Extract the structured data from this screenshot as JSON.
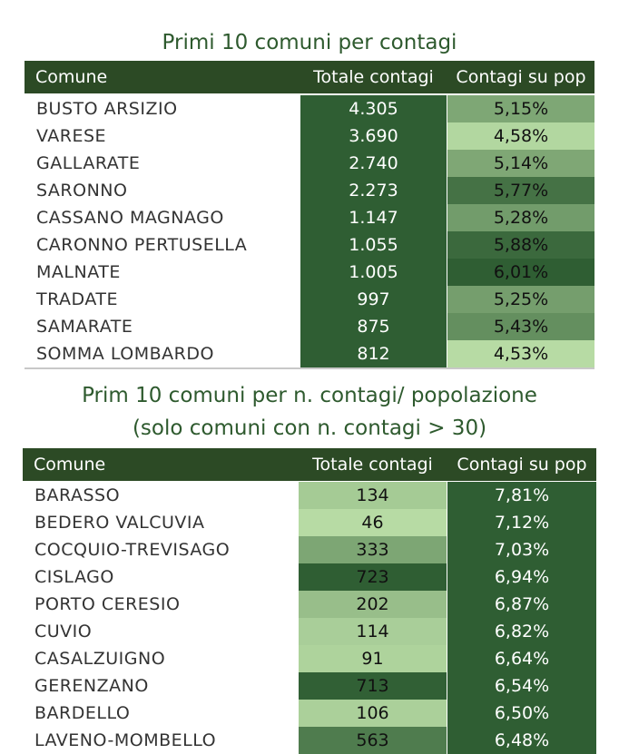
{
  "colors": {
    "header_bg": "#2c4a25",
    "title_text": "#2e5a2e",
    "scale_light": "#b7dba4",
    "scale_dark": "#2f5e33"
  },
  "chart_data": [
    {
      "type": "table",
      "title": "Primi 10 comuni per contagi",
      "columns": [
        "Comune",
        "Totale contagi",
        "Contagi su pop"
      ],
      "rows": [
        [
          "BUSTO ARSIZIO",
          "4.305",
          "5,15%"
        ],
        [
          "VARESE",
          "3.690",
          "4,58%"
        ],
        [
          "GALLARATE",
          "2.740",
          "5,14%"
        ],
        [
          "SARONNO",
          "2.273",
          "5,77%"
        ],
        [
          "CASSANO MAGNAGO",
          "1.147",
          "5,28%"
        ],
        [
          "CARONNO PERTUSELLA",
          "1.055",
          "5,88%"
        ],
        [
          "MALNATE",
          "1.005",
          "6,01%"
        ],
        [
          "TRADATE",
          "997",
          "5,25%"
        ],
        [
          "SAMARATE",
          "875",
          "5,43%"
        ],
        [
          "SOMMA LOMBARDO",
          "812",
          "4,53%"
        ]
      ],
      "totale_values": [
        4305,
        3690,
        2740,
        2273,
        1147,
        1055,
        1005,
        997,
        875,
        812
      ],
      "pct_values": [
        5.15,
        4.58,
        5.14,
        5.77,
        5.28,
        5.88,
        6.01,
        5.25,
        5.43,
        4.53
      ],
      "shade": {
        "totale": false,
        "pct": true
      }
    },
    {
      "type": "table",
      "title": "Prim 10 comuni per n. contagi/ popolazione",
      "subtitle": "(solo comuni con n. contagi > 30)",
      "columns": [
        "Comune",
        "Totale contagi",
        "Contagi su pop"
      ],
      "rows": [
        [
          "BARASSO",
          "134",
          "7,81%"
        ],
        [
          "BEDERO VALCUVIA",
          "46",
          "7,12%"
        ],
        [
          "COCQUIO-TREVISAGO",
          "333",
          "7,03%"
        ],
        [
          "CISLAGO",
          "723",
          "6,94%"
        ],
        [
          "PORTO CERESIO",
          "202",
          "6,87%"
        ],
        [
          "CUVIO",
          "114",
          "6,82%"
        ],
        [
          "CASALZUIGNO",
          "91",
          "6,64%"
        ],
        [
          "GERENZANO",
          "713",
          "6,54%"
        ],
        [
          "BARDELLO",
          "106",
          "6,50%"
        ],
        [
          "LAVENO-MOMBELLO",
          "563",
          "6,48%"
        ]
      ],
      "totale_values": [
        134,
        46,
        333,
        723,
        202,
        114,
        91,
        713,
        106,
        563
      ],
      "pct_values": [
        7.81,
        7.12,
        7.03,
        6.94,
        6.87,
        6.82,
        6.64,
        6.54,
        6.5,
        6.48
      ],
      "shade": {
        "totale": true,
        "pct": false
      }
    }
  ]
}
